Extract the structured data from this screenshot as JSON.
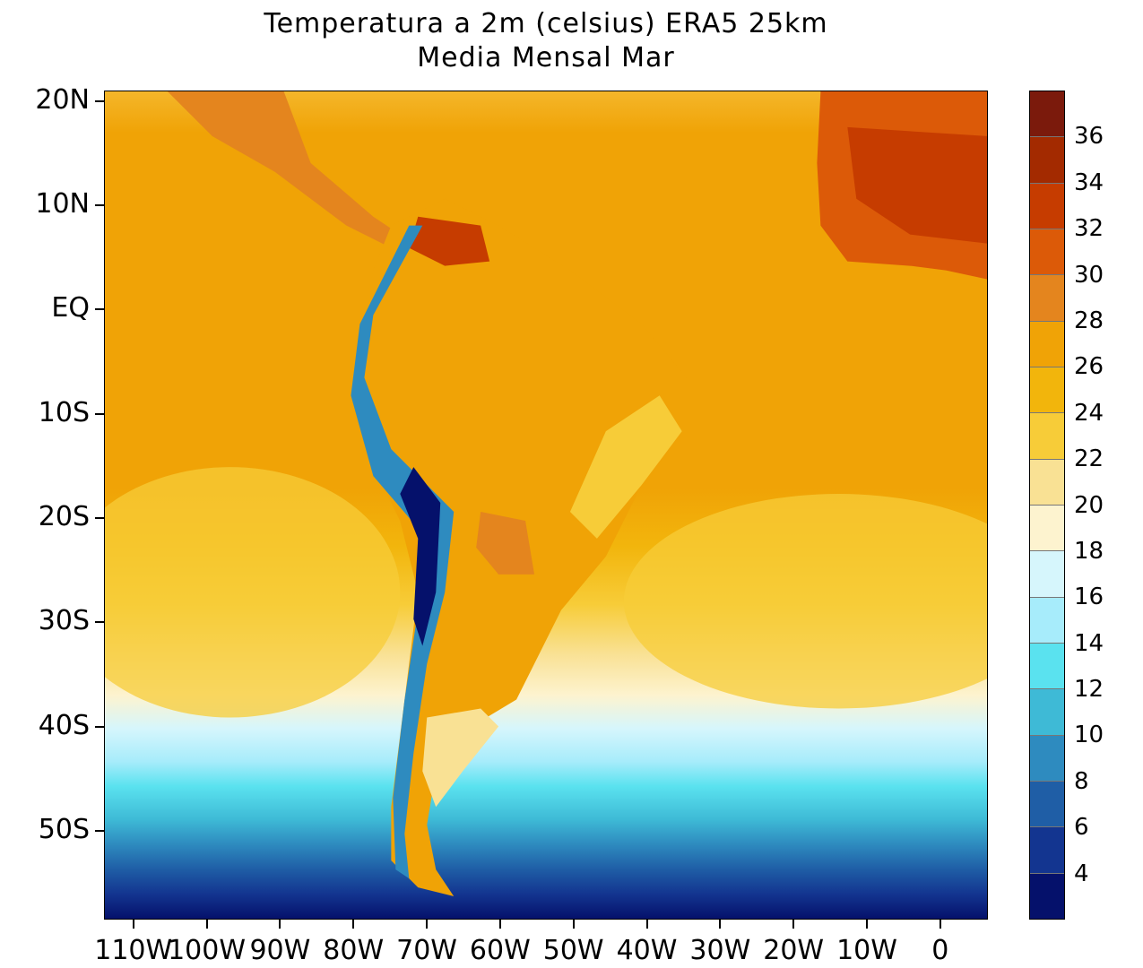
{
  "title": {
    "line1": "Temperatura a 2m (celsius) ERA5  25km",
    "line2": "Media Mensal Mar"
  },
  "y_axis": {
    "labels": [
      "20N",
      "10N",
      "EQ",
      "10S",
      "20S",
      "30S",
      "40S",
      "50S"
    ],
    "lat_values": [
      20,
      10,
      0,
      -10,
      -20,
      -30,
      -40,
      -50
    ]
  },
  "x_axis": {
    "labels": [
      "110W",
      "100W",
      "90W",
      "80W",
      "70W",
      "60W",
      "50W",
      "40W",
      "30W",
      "20W",
      "10W",
      "0"
    ],
    "lon_values": [
      -110,
      -100,
      -90,
      -80,
      -70,
      -60,
      -50,
      -40,
      -30,
      -20,
      -10,
      0
    ]
  },
  "map_extent": {
    "lon_min": -114,
    "lon_max": 6.5,
    "lat_min": -58.5,
    "lat_max": 21
  },
  "colorbar": {
    "labels": [
      "36",
      "34",
      "32",
      "30",
      "28",
      "26",
      "24",
      "22",
      "20",
      "18",
      "16",
      "14",
      "12",
      "10",
      "8",
      "6",
      "4"
    ],
    "levels": [
      36,
      34,
      32,
      30,
      28,
      26,
      24,
      22,
      20,
      18,
      16,
      14,
      12,
      10,
      8,
      6,
      4
    ],
    "colors_top_to_bottom": [
      "#7b1a0c",
      "#a32a00",
      "#c63c00",
      "#dc5a08",
      "#e4851e",
      "#f0a306",
      "#f2b50c",
      "#f7cc38",
      "#f9e194",
      "#fdf3cf",
      "#d6f6fc",
      "#a7ecfb",
      "#5ae2ef",
      "#3ebad6",
      "#2e8bbf",
      "#1f5ea6",
      "#133590",
      "#05116b"
    ]
  }
}
